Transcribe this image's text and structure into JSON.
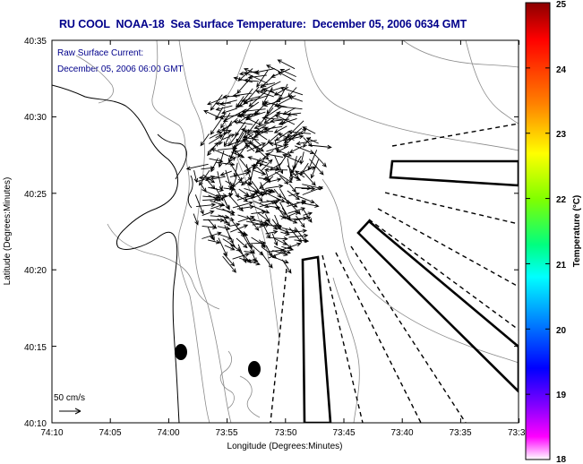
{
  "title": "RU COOL  NOAA-18  Sea Surface Temperature:  December 05, 2006 0634 GMT",
  "subtitle": {
    "line1": "Raw Surface Current:",
    "line2": "December 05, 2006 06:00 GMT"
  },
  "axes": {
    "xlabel": "Longitude (Degrees:Minutes)",
    "ylabel": "Latitude (Degrees:Minutes)",
    "x_ticks": [
      "74:10",
      "74:05",
      "74:00",
      "73:55",
      "73:50",
      "73:45",
      "73:40",
      "73:35",
      "73:3"
    ],
    "y_ticks": [
      "40:35",
      "40:30",
      "40:25",
      "40:20",
      "40:15",
      "40:10"
    ]
  },
  "scale": {
    "label": "50 cm/s"
  },
  "colorbar": {
    "label": "Temperature (°C)",
    "ticks": [
      "25",
      "24",
      "23",
      "22",
      "21",
      "20",
      "19",
      "18"
    ],
    "colors": [
      "#8b0000",
      "#ff0000",
      "#ff8000",
      "#ffff00",
      "#80ff00",
      "#00ff80",
      "#00ffff",
      "#0080ff",
      "#0000ff",
      "#8000ff",
      "#ff00ff",
      "#ffffff"
    ]
  }
}
